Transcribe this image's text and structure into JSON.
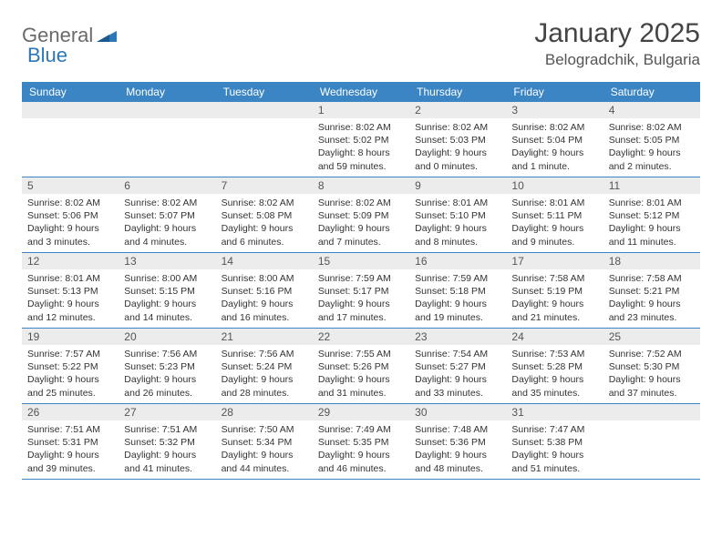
{
  "logo": {
    "part1": "General",
    "part2": "Blue"
  },
  "title": "January 2025",
  "location": "Belogradchik, Bulgaria",
  "colors": {
    "header_bg": "#3b85c4",
    "header_text": "#ffffff",
    "daynum_bg": "#ececec",
    "daynum_text": "#555555",
    "detail_text": "#333333",
    "rule": "#3b85c4",
    "logo_gray": "#6a6a6a",
    "logo_blue": "#2b77b8"
  },
  "day_headers": [
    "Sunday",
    "Monday",
    "Tuesday",
    "Wednesday",
    "Thursday",
    "Friday",
    "Saturday"
  ],
  "weeks": [
    [
      {
        "day": "",
        "sunrise": "",
        "sunset": "",
        "daylight": ""
      },
      {
        "day": "",
        "sunrise": "",
        "sunset": "",
        "daylight": ""
      },
      {
        "day": "",
        "sunrise": "",
        "sunset": "",
        "daylight": ""
      },
      {
        "day": "1",
        "sunrise": "Sunrise: 8:02 AM",
        "sunset": "Sunset: 5:02 PM",
        "daylight": "Daylight: 8 hours and 59 minutes."
      },
      {
        "day": "2",
        "sunrise": "Sunrise: 8:02 AM",
        "sunset": "Sunset: 5:03 PM",
        "daylight": "Daylight: 9 hours and 0 minutes."
      },
      {
        "day": "3",
        "sunrise": "Sunrise: 8:02 AM",
        "sunset": "Sunset: 5:04 PM",
        "daylight": "Daylight: 9 hours and 1 minute."
      },
      {
        "day": "4",
        "sunrise": "Sunrise: 8:02 AM",
        "sunset": "Sunset: 5:05 PM",
        "daylight": "Daylight: 9 hours and 2 minutes."
      }
    ],
    [
      {
        "day": "5",
        "sunrise": "Sunrise: 8:02 AM",
        "sunset": "Sunset: 5:06 PM",
        "daylight": "Daylight: 9 hours and 3 minutes."
      },
      {
        "day": "6",
        "sunrise": "Sunrise: 8:02 AM",
        "sunset": "Sunset: 5:07 PM",
        "daylight": "Daylight: 9 hours and 4 minutes."
      },
      {
        "day": "7",
        "sunrise": "Sunrise: 8:02 AM",
        "sunset": "Sunset: 5:08 PM",
        "daylight": "Daylight: 9 hours and 6 minutes."
      },
      {
        "day": "8",
        "sunrise": "Sunrise: 8:02 AM",
        "sunset": "Sunset: 5:09 PM",
        "daylight": "Daylight: 9 hours and 7 minutes."
      },
      {
        "day": "9",
        "sunrise": "Sunrise: 8:01 AM",
        "sunset": "Sunset: 5:10 PM",
        "daylight": "Daylight: 9 hours and 8 minutes."
      },
      {
        "day": "10",
        "sunrise": "Sunrise: 8:01 AM",
        "sunset": "Sunset: 5:11 PM",
        "daylight": "Daylight: 9 hours and 9 minutes."
      },
      {
        "day": "11",
        "sunrise": "Sunrise: 8:01 AM",
        "sunset": "Sunset: 5:12 PM",
        "daylight": "Daylight: 9 hours and 11 minutes."
      }
    ],
    [
      {
        "day": "12",
        "sunrise": "Sunrise: 8:01 AM",
        "sunset": "Sunset: 5:13 PM",
        "daylight": "Daylight: 9 hours and 12 minutes."
      },
      {
        "day": "13",
        "sunrise": "Sunrise: 8:00 AM",
        "sunset": "Sunset: 5:15 PM",
        "daylight": "Daylight: 9 hours and 14 minutes."
      },
      {
        "day": "14",
        "sunrise": "Sunrise: 8:00 AM",
        "sunset": "Sunset: 5:16 PM",
        "daylight": "Daylight: 9 hours and 16 minutes."
      },
      {
        "day": "15",
        "sunrise": "Sunrise: 7:59 AM",
        "sunset": "Sunset: 5:17 PM",
        "daylight": "Daylight: 9 hours and 17 minutes."
      },
      {
        "day": "16",
        "sunrise": "Sunrise: 7:59 AM",
        "sunset": "Sunset: 5:18 PM",
        "daylight": "Daylight: 9 hours and 19 minutes."
      },
      {
        "day": "17",
        "sunrise": "Sunrise: 7:58 AM",
        "sunset": "Sunset: 5:19 PM",
        "daylight": "Daylight: 9 hours and 21 minutes."
      },
      {
        "day": "18",
        "sunrise": "Sunrise: 7:58 AM",
        "sunset": "Sunset: 5:21 PM",
        "daylight": "Daylight: 9 hours and 23 minutes."
      }
    ],
    [
      {
        "day": "19",
        "sunrise": "Sunrise: 7:57 AM",
        "sunset": "Sunset: 5:22 PM",
        "daylight": "Daylight: 9 hours and 25 minutes."
      },
      {
        "day": "20",
        "sunrise": "Sunrise: 7:56 AM",
        "sunset": "Sunset: 5:23 PM",
        "daylight": "Daylight: 9 hours and 26 minutes."
      },
      {
        "day": "21",
        "sunrise": "Sunrise: 7:56 AM",
        "sunset": "Sunset: 5:24 PM",
        "daylight": "Daylight: 9 hours and 28 minutes."
      },
      {
        "day": "22",
        "sunrise": "Sunrise: 7:55 AM",
        "sunset": "Sunset: 5:26 PM",
        "daylight": "Daylight: 9 hours and 31 minutes."
      },
      {
        "day": "23",
        "sunrise": "Sunrise: 7:54 AM",
        "sunset": "Sunset: 5:27 PM",
        "daylight": "Daylight: 9 hours and 33 minutes."
      },
      {
        "day": "24",
        "sunrise": "Sunrise: 7:53 AM",
        "sunset": "Sunset: 5:28 PM",
        "daylight": "Daylight: 9 hours and 35 minutes."
      },
      {
        "day": "25",
        "sunrise": "Sunrise: 7:52 AM",
        "sunset": "Sunset: 5:30 PM",
        "daylight": "Daylight: 9 hours and 37 minutes."
      }
    ],
    [
      {
        "day": "26",
        "sunrise": "Sunrise: 7:51 AM",
        "sunset": "Sunset: 5:31 PM",
        "daylight": "Daylight: 9 hours and 39 minutes."
      },
      {
        "day": "27",
        "sunrise": "Sunrise: 7:51 AM",
        "sunset": "Sunset: 5:32 PM",
        "daylight": "Daylight: 9 hours and 41 minutes."
      },
      {
        "day": "28",
        "sunrise": "Sunrise: 7:50 AM",
        "sunset": "Sunset: 5:34 PM",
        "daylight": "Daylight: 9 hours and 44 minutes."
      },
      {
        "day": "29",
        "sunrise": "Sunrise: 7:49 AM",
        "sunset": "Sunset: 5:35 PM",
        "daylight": "Daylight: 9 hours and 46 minutes."
      },
      {
        "day": "30",
        "sunrise": "Sunrise: 7:48 AM",
        "sunset": "Sunset: 5:36 PM",
        "daylight": "Daylight: 9 hours and 48 minutes."
      },
      {
        "day": "31",
        "sunrise": "Sunrise: 7:47 AM",
        "sunset": "Sunset: 5:38 PM",
        "daylight": "Daylight: 9 hours and 51 minutes."
      },
      {
        "day": "",
        "sunrise": "",
        "sunset": "",
        "daylight": ""
      }
    ]
  ]
}
